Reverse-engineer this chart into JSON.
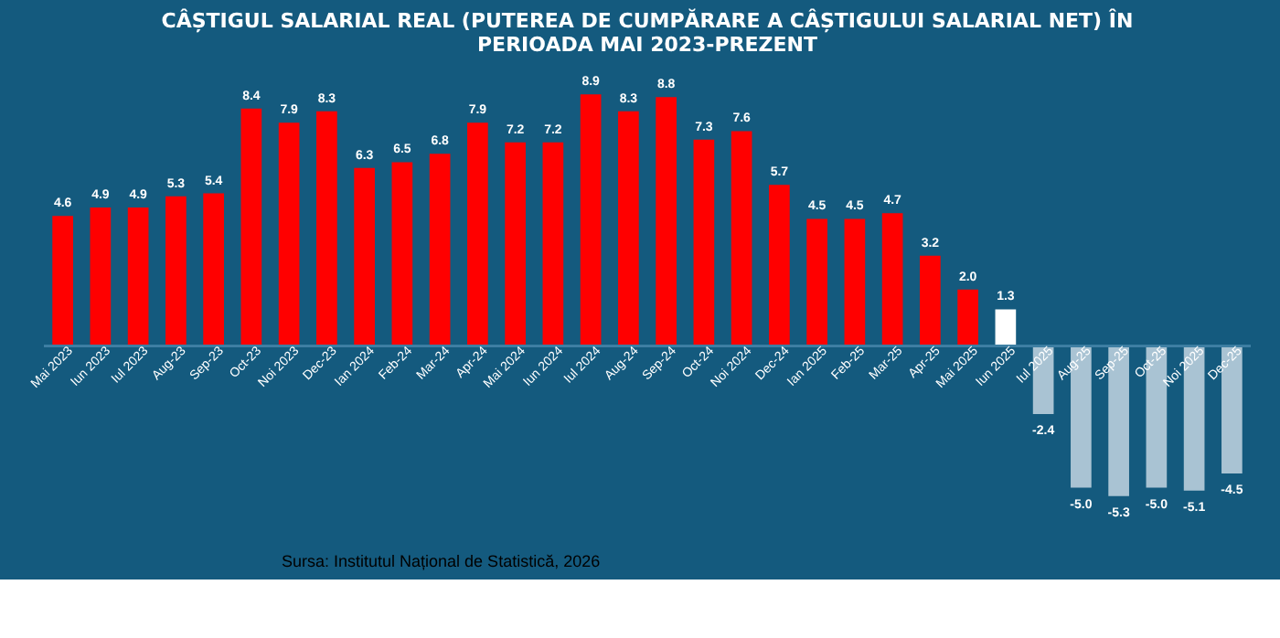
{
  "chart_data": {
    "type": "bar",
    "title": "CÂȘTIGUL SALARIAL REAL (PUTEREA DE CUMPĂRARE A CÂȘTIGULUI SALARIAL NET) ÎN\nPERIOADA MAI 2023-PREZENT",
    "categories": [
      "Mai 2023",
      "Iun 2023",
      "Iul 2023",
      "Aug-23",
      "Sep-23",
      "Oct-23",
      "Noi 2023",
      "Dec-23",
      "Ian 2024",
      "Feb-24",
      "Mar-24",
      "Apr-24",
      "Mai 2024",
      "Iun 2024",
      "Iul 2024",
      "Aug-24",
      "Sep-24",
      "Oct-24",
      "Noi 2024",
      "Dec-24",
      "Ian 2025",
      "Feb-25",
      "Mar-25",
      "Apr-25",
      "Mai 2025",
      "Iun 2025",
      "Iul 2025",
      "Aug-25",
      "Sep-25",
      "Oct-25",
      "Noi 2025",
      "Dec-25"
    ],
    "values": [
      4.6,
      4.9,
      4.9,
      5.3,
      5.4,
      8.4,
      7.9,
      8.3,
      6.3,
      6.5,
      6.8,
      7.9,
      7.2,
      7.2,
      8.9,
      8.3,
      8.8,
      7.3,
      7.6,
      5.7,
      4.5,
      4.5,
      4.7,
      3.2,
      2.0,
      1.3,
      -2.4,
      -5.0,
      -5.3,
      -5.0,
      -5.1,
      -4.5
    ],
    "colors": [
      "#ff0000",
      "#ff0000",
      "#ff0000",
      "#ff0000",
      "#ff0000",
      "#ff0000",
      "#ff0000",
      "#ff0000",
      "#ff0000",
      "#ff0000",
      "#ff0000",
      "#ff0000",
      "#ff0000",
      "#ff0000",
      "#ff0000",
      "#ff0000",
      "#ff0000",
      "#ff0000",
      "#ff0000",
      "#ff0000",
      "#ff0000",
      "#ff0000",
      "#ff0000",
      "#ff0000",
      "#ff0000",
      "#ffffff",
      "#a9c3d3",
      "#a9c3d3",
      "#a9c3d3",
      "#a9c3d3",
      "#a9c3d3",
      "#a9c3d3"
    ],
    "value_labels": [
      "4.6",
      "4.9",
      "4.9",
      "5.3",
      "5.4",
      "8.4",
      "7.9",
      "8.3",
      "6.3",
      "6.5",
      "6.8",
      "7.9",
      "7.2",
      "7.2",
      "8.9",
      "8.3",
      "8.8",
      "7.3",
      "7.6",
      "5.7",
      "4.5",
      "4.5",
      "4.7",
      "3.2",
      "2.0",
      "1.3",
      "-2.4",
      "-5.0",
      "-5.3",
      "-5.0",
      "-5.1",
      "-4.5"
    ],
    "annotations": [
      "Sursa: Institutul Național de Statistică, 2026"
    ]
  }
}
